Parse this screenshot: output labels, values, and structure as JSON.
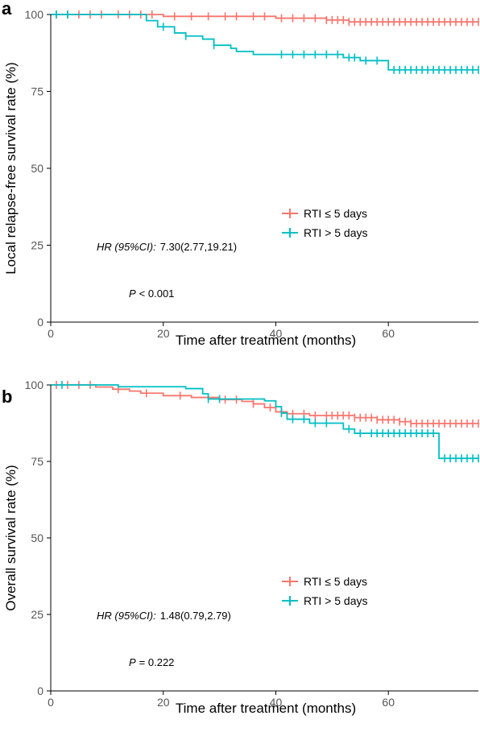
{
  "chart_data": [
    {
      "panel": "a",
      "type": "line",
      "step": true,
      "xlabel": "Time after treatment (months)",
      "ylabel": "Local relapse-free survival rate (%)",
      "xlim": [
        0,
        76
      ],
      "ylim": [
        0,
        100
      ],
      "xticks": [
        "0",
        "20",
        "40",
        "60"
      ],
      "yticks": [
        "0",
        "25",
        "50",
        "75",
        "100"
      ],
      "grid": false,
      "legend_position": "center-right",
      "hr_label": "HR (95%CI):",
      "hr_value": "7.30(2.77,19.21)",
      "p_label": "P",
      "p_value": "< 0.001",
      "series": [
        {
          "name": "RTI ≤ 5 days",
          "color": "#F8766D",
          "steps": [
            [
              0,
              100
            ],
            [
              20,
              99.4
            ],
            [
              40,
              98.8
            ],
            [
              49,
              98.2
            ],
            [
              53,
              97.6
            ],
            [
              76,
              97.6
            ]
          ],
          "censors": [
            1,
            3,
            5,
            7,
            9,
            12,
            14,
            16,
            18,
            22,
            25,
            28,
            31,
            33,
            36,
            38,
            41,
            43,
            45,
            47,
            49,
            50,
            51,
            52,
            53,
            54,
            55,
            56,
            57,
            58,
            59,
            60,
            61,
            62,
            63,
            64,
            65,
            66,
            67,
            68,
            69,
            70,
            71,
            72,
            73,
            74,
            75,
            76
          ]
        },
        {
          "name": "RTI > 5 days",
          "color": "#00BFC4",
          "steps": [
            [
              0,
              100
            ],
            [
              17,
              98
            ],
            [
              19,
              96
            ],
            [
              22,
              94
            ],
            [
              24,
              93
            ],
            [
              27,
              92
            ],
            [
              29,
              90
            ],
            [
              32,
              89
            ],
            [
              33,
              88
            ],
            [
              36,
              87
            ],
            [
              52,
              86
            ],
            [
              55,
              85
            ],
            [
              60,
              82
            ],
            [
              76,
              82
            ]
          ],
          "censors": [
            1,
            3,
            20,
            24,
            29,
            41,
            43,
            45,
            47,
            49,
            51,
            53,
            54,
            56,
            58,
            61,
            62,
            63,
            64,
            65,
            66,
            67,
            68,
            69,
            70,
            71,
            72,
            73,
            74,
            75,
            76
          ]
        }
      ]
    },
    {
      "panel": "b",
      "type": "line",
      "step": true,
      "xlabel": "Time after treatment (months)",
      "ylabel": "Overall survival rate (%)",
      "xlim": [
        0,
        76
      ],
      "ylim": [
        0,
        100
      ],
      "xticks": [
        "0",
        "20",
        "40",
        "60"
      ],
      "yticks": [
        "0",
        "25",
        "50",
        "75",
        "100"
      ],
      "grid": false,
      "legend_position": "center-right",
      "hr_label": "HR (95%CI):",
      "hr_value": "1.48(0.79,2.79)",
      "p_label": "P",
      "p_value": "= 0.222",
      "series": [
        {
          "name": "RTI ≤ 5 days",
          "color": "#F8766D",
          "steps": [
            [
              0,
              100
            ],
            [
              8,
              99.3
            ],
            [
              11,
              98.6
            ],
            [
              14,
              98
            ],
            [
              16,
              97.3
            ],
            [
              20,
              96.5
            ],
            [
              25,
              95.9
            ],
            [
              30,
              95.2
            ],
            [
              34,
              94.6
            ],
            [
              36,
              93.8
            ],
            [
              38,
              92.6
            ],
            [
              40,
              91.2
            ],
            [
              42,
              90.6
            ],
            [
              46,
              90
            ],
            [
              54,
              89.3
            ],
            [
              58,
              88.6
            ],
            [
              62,
              88
            ],
            [
              64,
              87.4
            ],
            [
              76,
              87.4
            ]
          ],
          "censors": [
            1,
            3,
            5,
            7,
            12,
            17,
            23,
            31,
            33,
            36,
            39,
            41,
            43,
            45,
            47,
            49,
            50,
            51,
            52,
            53,
            54,
            55,
            56,
            57,
            58,
            59,
            60,
            61,
            62,
            63,
            64,
            65,
            66,
            67,
            68,
            69,
            70,
            71,
            72,
            73,
            74,
            75,
            76
          ]
        },
        {
          "name": "RTI > 5 days",
          "color": "#00BFC4",
          "steps": [
            [
              0,
              100
            ],
            [
              12,
              99.4
            ],
            [
              24,
              98.8
            ],
            [
              27,
              97.1
            ],
            [
              28,
              95.4
            ],
            [
              38,
              94.8
            ],
            [
              40,
              92.9
            ],
            [
              41,
              90.8
            ],
            [
              42,
              88.8
            ],
            [
              46,
              87.5
            ],
            [
              52,
              85.6
            ],
            [
              54,
              84.2
            ],
            [
              69,
              76
            ],
            [
              76,
              76
            ]
          ],
          "censors": [
            2,
            28,
            30,
            41,
            43,
            45,
            47,
            49,
            53,
            55,
            57,
            58,
            59,
            60,
            61,
            62,
            63,
            64,
            65,
            66,
            67,
            68,
            70,
            71,
            72,
            73,
            74,
            75,
            76
          ]
        }
      ]
    }
  ]
}
